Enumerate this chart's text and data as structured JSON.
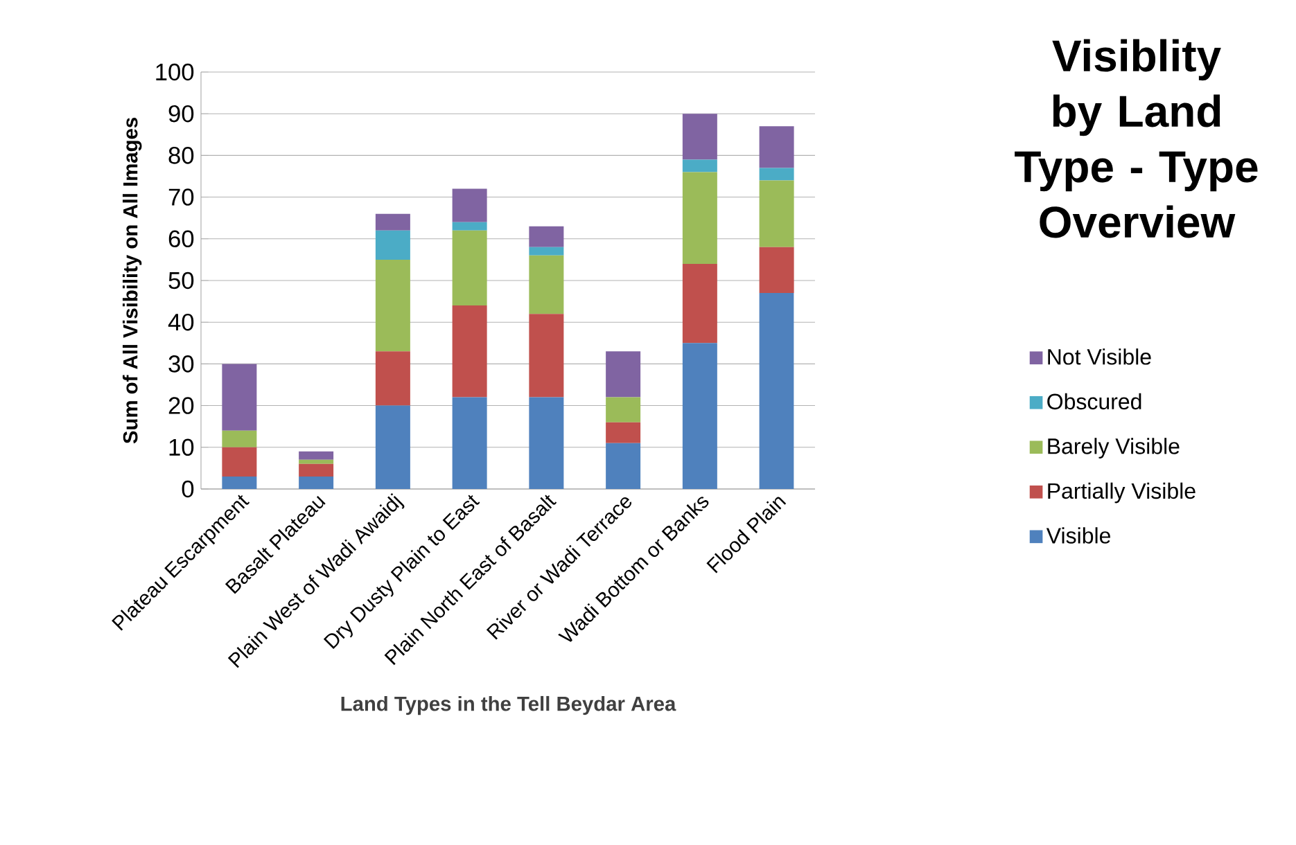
{
  "chart_data": {
    "type": "bar",
    "stacked": true,
    "title": "Visiblity by Land Type - Type Overview",
    "xlabel": "Land Types in the Tell Beydar Area",
    "ylabel": "Sum of All Visibility on All Images",
    "categories": [
      "Plateau Escarpment",
      "Basalt Plateau",
      "Plain West of Wadi Awaidj",
      "Dry Dusty Plain to East",
      "Plain North East of Basalt",
      "River or Wadi Terrace",
      "Wadi Bottom or Banks",
      "Flood Plain"
    ],
    "series": [
      {
        "name": "Visible",
        "color": "#4f81bd",
        "values": [
          3,
          3,
          20,
          22,
          22,
          11,
          35,
          47
        ]
      },
      {
        "name": "Partially Visible",
        "color": "#c0504d",
        "values": [
          7,
          3,
          13,
          22,
          20,
          5,
          19,
          11
        ]
      },
      {
        "name": "Barely Visible",
        "color": "#9bbb59",
        "values": [
          4,
          1,
          22,
          18,
          14,
          6,
          22,
          16
        ]
      },
      {
        "name": "Obscured",
        "color": "#4bacc6",
        "values": [
          0,
          0,
          7,
          2,
          2,
          0,
          3,
          3
        ]
      },
      {
        "name": "Not Visible",
        "color": "#8064a2",
        "values": [
          16,
          2,
          4,
          8,
          5,
          11,
          11,
          10
        ]
      }
    ],
    "ylim": [
      0,
      100
    ],
    "yticks": [
      0,
      10,
      20,
      30,
      40,
      50,
      60,
      70,
      80,
      90,
      100
    ],
    "grid": "y",
    "legend": "right"
  }
}
